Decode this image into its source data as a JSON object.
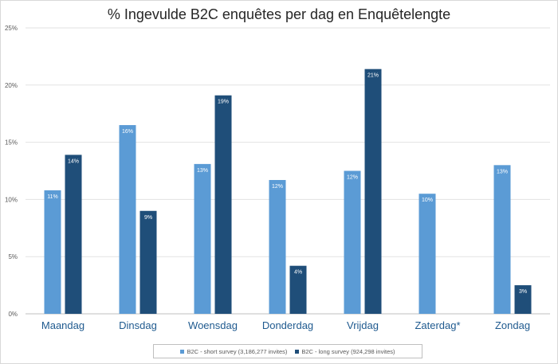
{
  "chart_data": {
    "type": "bar",
    "title": "% Ingevulde B2C enquêtes per dag en Enquêtelengte",
    "categories": [
      "Maandag",
      "Dinsdag",
      "Woensdag",
      "Donderdag",
      "Vrijdag",
      "Zaterdag*",
      "Zondag"
    ],
    "series": [
      {
        "name": "B2C - short survey (3,186,277 invites)",
        "color": "#5b9bd5",
        "values": [
          10.8,
          16.5,
          13.1,
          11.7,
          12.5,
          10.5,
          13.0
        ],
        "labels": [
          "11%",
          "16%",
          "13%",
          "12%",
          "12%",
          "10%",
          "13%"
        ]
      },
      {
        "name": "B2C - long survey (924,298 invites)",
        "color": "#1f4e79",
        "values": [
          13.9,
          9.0,
          19.1,
          4.2,
          21.4,
          null,
          2.5
        ],
        "labels": [
          "14%",
          "9%",
          "19%",
          "4%",
          "21%",
          null,
          "3%"
        ]
      }
    ],
    "y_ticks": [
      "0%",
      "5%",
      "10%",
      "15%",
      "20%",
      "25%"
    ],
    "ylim": [
      0,
      25
    ],
    "grid": true,
    "legend_position": "bottom"
  }
}
